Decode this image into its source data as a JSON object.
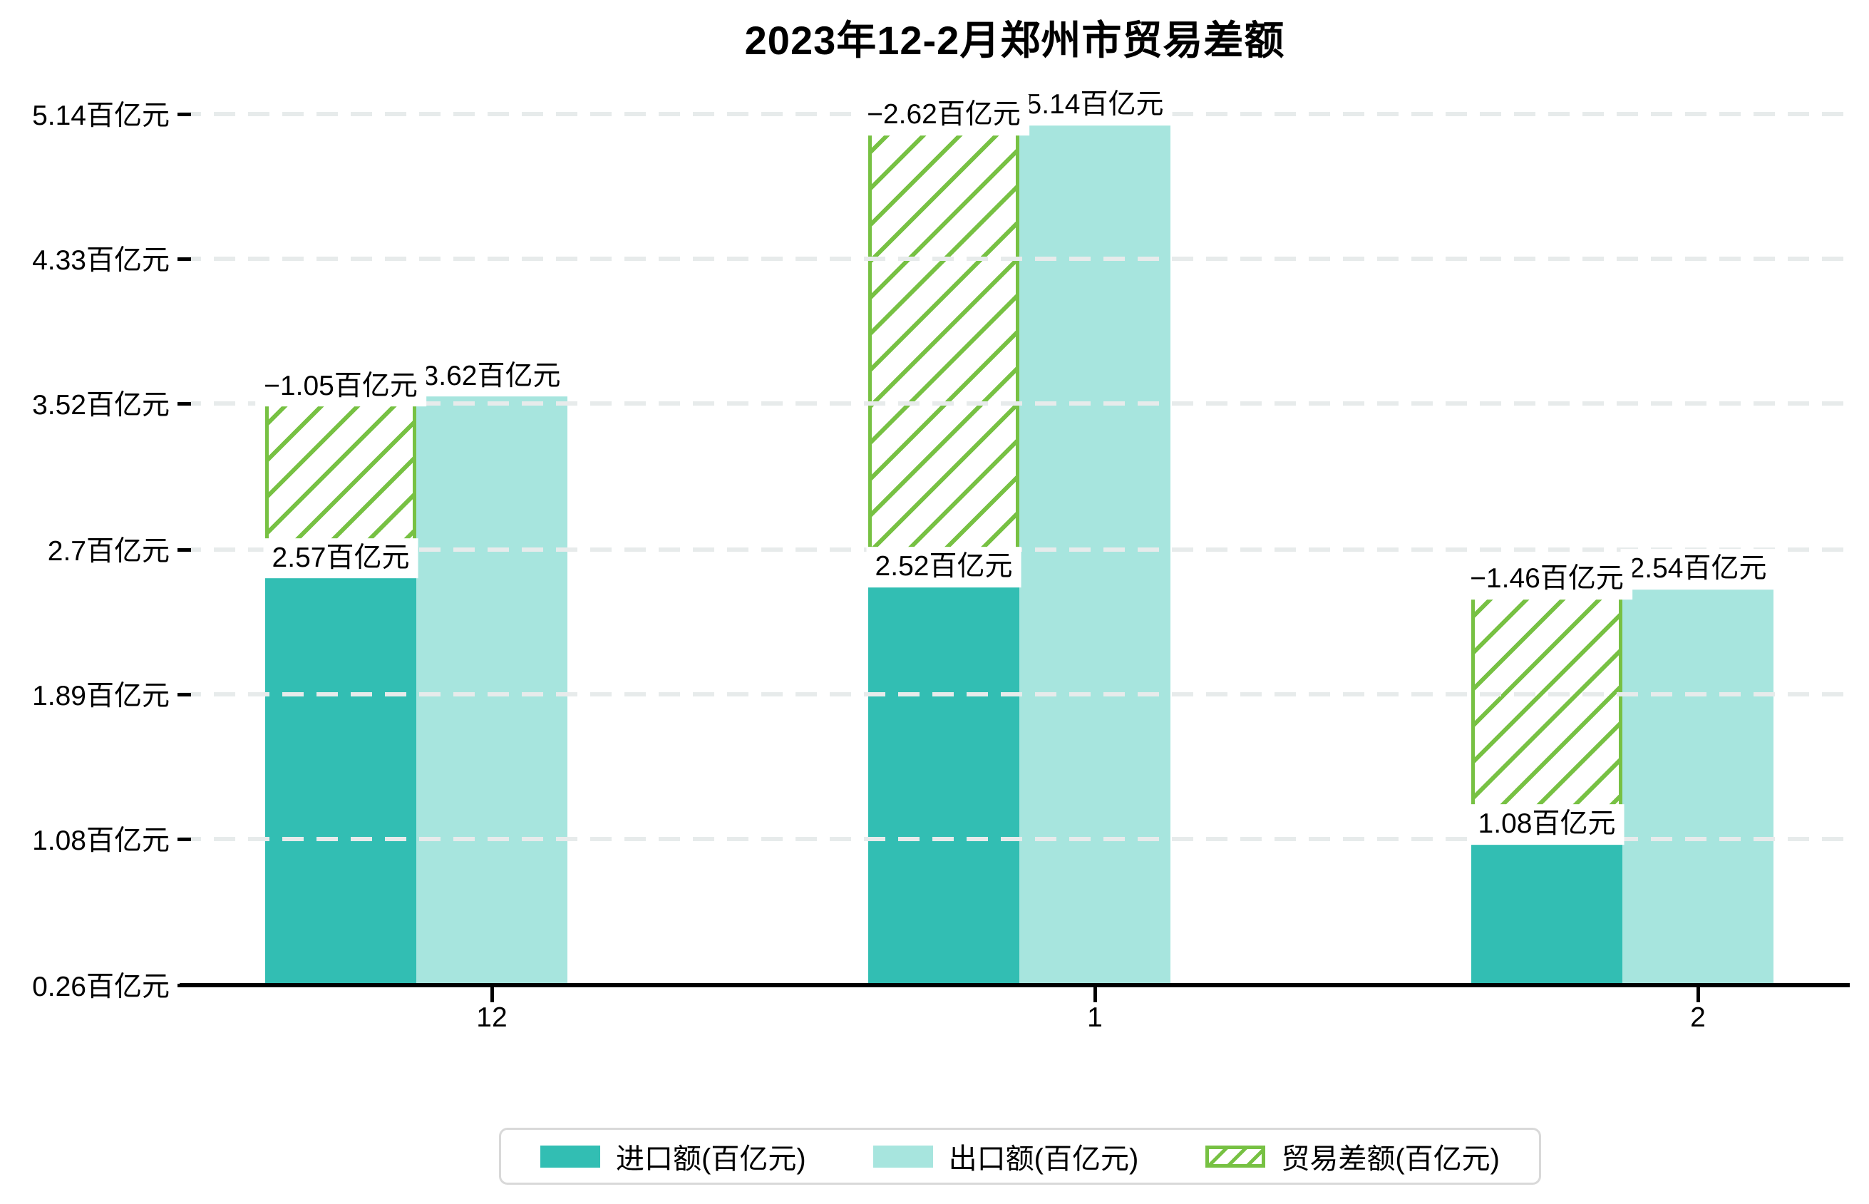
{
  "title": "2023年12-2月郑州市贸易差额",
  "chart_data": {
    "type": "bar",
    "title": "2023年12-2月郑州市贸易差额",
    "categories": [
      "12",
      "1",
      "2"
    ],
    "series": [
      {
        "name": "进口额(百亿元)",
        "role": "import",
        "values": [
          2.57,
          2.52,
          1.08
        ],
        "labels": [
          "2.57百亿元",
          "2.52百亿元",
          "1.08百亿元"
        ]
      },
      {
        "name": "出口额(百亿元)",
        "role": "export",
        "values": [
          3.62,
          5.14,
          2.54
        ],
        "labels": [
          "3.62百亿元",
          "5.14百亿元",
          "2.54百亿元"
        ]
      },
      {
        "name": "贸易差额(百亿元)",
        "role": "trade-balance",
        "style": "hatched-floating-bar-from-import-to-export",
        "values": [
          -1.05,
          -2.62,
          -1.46
        ],
        "labels": [
          "−1.05百亿元",
          "−2.62百亿元",
          "−1.46百亿元"
        ]
      }
    ],
    "y_axis": {
      "unit": "百亿元",
      "min": 0.26,
      "max": 5.14,
      "ticks": [
        {
          "value": 5.14,
          "label": "5.14百亿元"
        },
        {
          "value": 4.33,
          "label": "4.33百亿元"
        },
        {
          "value": 3.52,
          "label": "3.52百亿元"
        },
        {
          "value": 2.7,
          "label": "2.7百亿元"
        },
        {
          "value": 1.89,
          "label": "1.89百亿元"
        },
        {
          "value": 1.08,
          "label": "1.08百亿元"
        },
        {
          "value": 0.26,
          "label": "0.26百亿元"
        }
      ]
    },
    "x_axis": {
      "tick_labels": [
        "12",
        "1",
        "2"
      ]
    },
    "grid": "horizontal dashed, drawn over bars",
    "legend_position": "bottom-center"
  },
  "legend": {
    "items": [
      {
        "label": "进口额(百亿元)",
        "swatch": "solid-import"
      },
      {
        "label": "出口额(百亿元)",
        "swatch": "solid-export"
      },
      {
        "label": "贸易差额(百亿元)",
        "swatch": "green-hatched"
      }
    ]
  },
  "colors": {
    "import": "#32beb3",
    "export": "#a7e5de",
    "balance": "#77c143",
    "grid": "#e7ebeb",
    "axis": "#000000",
    "label_bg": "#ffffff",
    "text": "#000000",
    "legend_border": "#d9d9d9"
  }
}
